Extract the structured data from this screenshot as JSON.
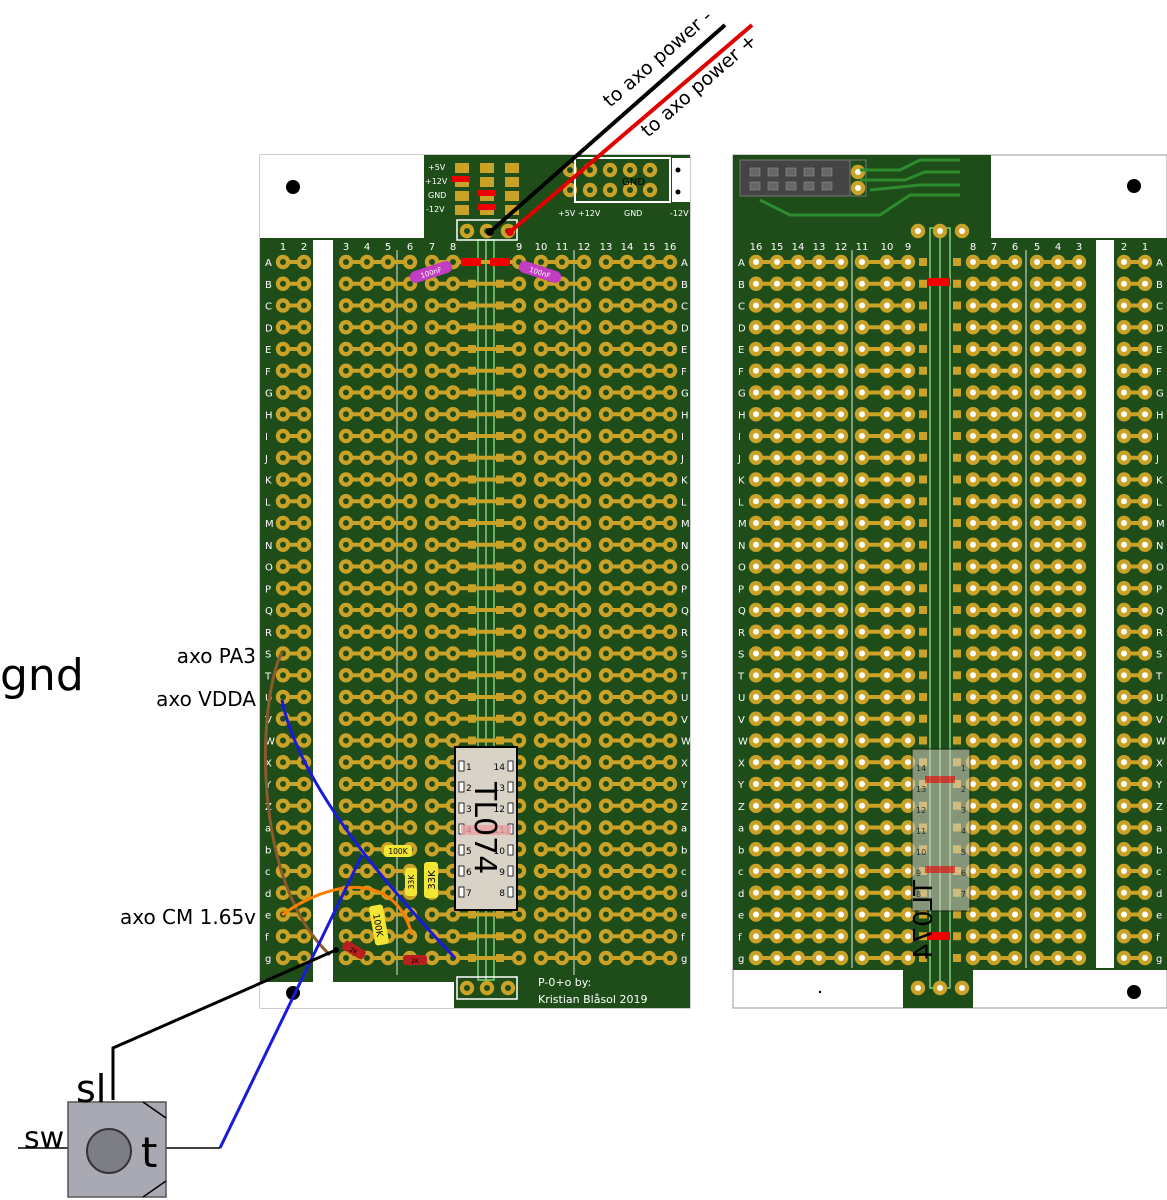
{
  "labels": {
    "wire_minus": "to axo power -",
    "wire_plus": "to axo power +",
    "gnd": "gnd",
    "axo_pa3": "axo PA3",
    "axo_vdda": "axo VDDA",
    "axo_cm": "axo CM 1.65v",
    "jack_sl": "sl",
    "jack_sw": "sw",
    "jack_t": "t",
    "credit_line1": "P-0+o by:",
    "credit_line2": "Kristian Blåsol 2019",
    "ic_front": "TL074",
    "ic_back": "TL074"
  },
  "power_header": {
    "rails": [
      "+5V",
      "+12V",
      "GND",
      "-12V"
    ],
    "gnd_label": "GND",
    "bottom_labels": [
      "+5V",
      "+12V",
      "GND",
      "-12V"
    ]
  },
  "components": {
    "cap_left": "100nF",
    "cap_right": "100nF",
    "r_100k_a": "100K",
    "r_33k_a": "33K",
    "r_33k_b": "33K",
    "r_100k_b": "100K",
    "r_red_a": "2K",
    "r_red_b": "2K"
  },
  "board": {
    "rows": [
      "A",
      "B",
      "C",
      "D",
      "E",
      "F",
      "G",
      "H",
      "I",
      "J",
      "K",
      "L",
      "M",
      "N",
      "O",
      "P",
      "Q",
      "R",
      "S",
      "T",
      "U",
      "V",
      "W",
      "X",
      "Y",
      "Z",
      "a",
      "b",
      "c",
      "d",
      "e",
      "f",
      "g"
    ],
    "front_cols": [
      "1",
      "2",
      "3",
      "4",
      "5",
      "6",
      "7",
      "8",
      "9",
      "10",
      "11",
      "12",
      "13",
      "14",
      "15",
      "16"
    ],
    "back_cols": [
      "16",
      "15",
      "14",
      "13",
      "12",
      "11",
      "10",
      "9",
      "8",
      "7",
      "6",
      "5",
      "4",
      "3",
      "2",
      "1"
    ],
    "ic_pins_left": [
      "1",
      "2",
      "3",
      "4",
      "5",
      "6",
      "7"
    ],
    "ic_pins_right": [
      "14",
      "13",
      "12",
      "11",
      "10",
      "9",
      "8"
    ]
  },
  "colors": {
    "pcb": "#1f4d19",
    "pad": "#c9a227",
    "wire_black": "#000000",
    "wire_red": "#e00000",
    "wire_blue": "#1a1adc",
    "wire_brown": "#8b5a2b",
    "wire_orange": "#ff7f00"
  }
}
